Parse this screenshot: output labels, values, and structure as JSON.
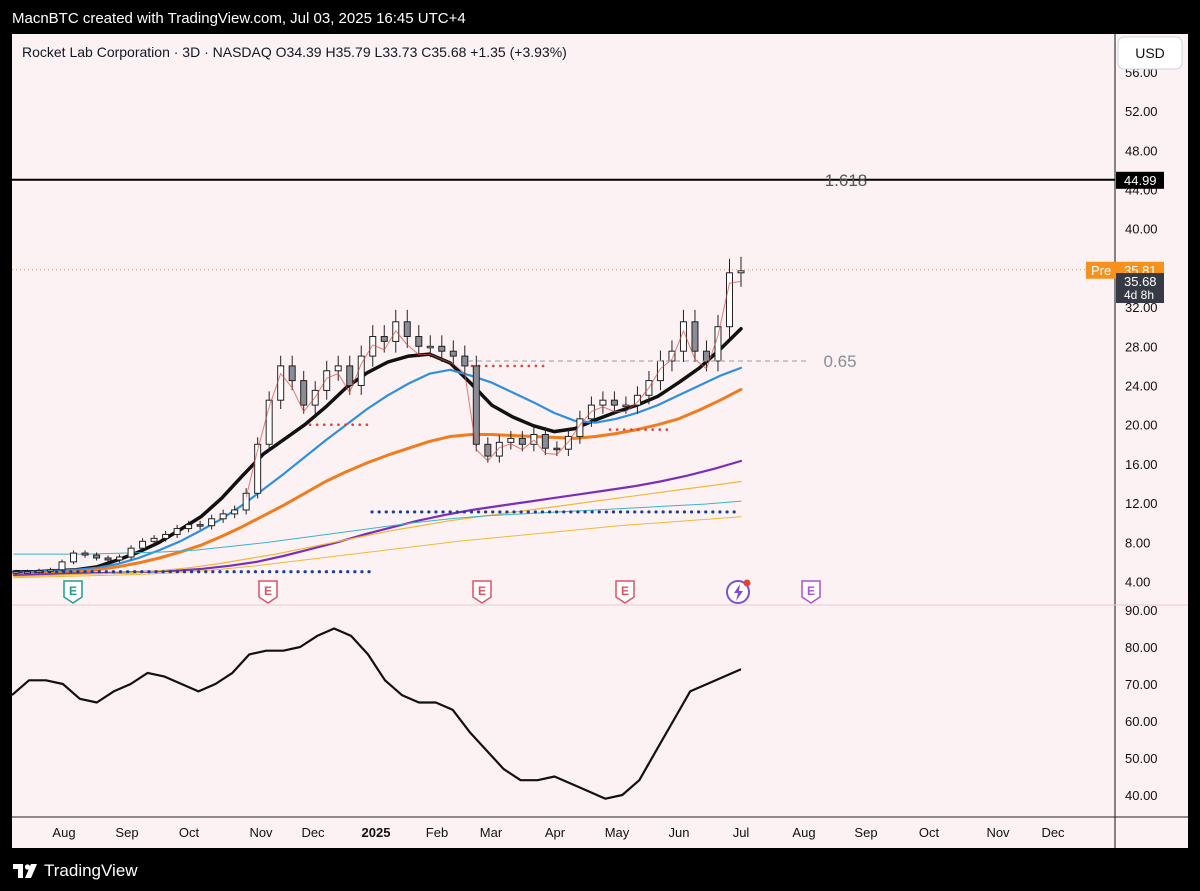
{
  "header": {
    "credit": "MacnBTC created with TradingView.com, Jul 03, 2025 16:45 UTC+4"
  },
  "footer": {
    "brand": "TradingView"
  },
  "legend": {
    "symbol": "Rocket Lab Corporation · 3D · NASDAQ",
    "open": "O34.39",
    "high": "H35.79",
    "low": "L33.73",
    "close": "C35.68",
    "change": "+1.35 (+3.93%)"
  },
  "currency_button": "USD",
  "colors": {
    "background": "#fcf1f3",
    "price_ma_black": "#111111",
    "ma_blue": "#2f8fe0",
    "ma_orange": "#f07c1e",
    "ma_purple": "#7b2fb8",
    "ma_gold": "#f1b938",
    "ma_teal": "#3ab5c9",
    "dots_blue": "#1c3f9a",
    "dots_red": "#e0453c",
    "pre_badge": "#f5921e",
    "price_badge": "#363a45",
    "earnings_past": "#e05262",
    "earnings_first": "#1d9e8f",
    "earnings_future": "#b04fd6"
  },
  "chart_data": [
    {
      "type": "candlestick",
      "title": "Rocket Lab Corporation · 3D · NASDAQ",
      "x_ticks": [
        "Aug",
        "Sep",
        "Oct",
        "Nov",
        "Dec",
        "2025",
        "Feb",
        "Mar",
        "Apr",
        "May",
        "Jun",
        "Jul",
        "Aug",
        "Sep",
        "Oct",
        "Nov",
        "Dec"
      ],
      "y_ticks": [
        "4.00",
        "8.00",
        "12.00",
        "16.00",
        "20.00",
        "24.00",
        "28.00",
        "32.00",
        "36.00",
        "40.00",
        "44.00",
        "48.00",
        "52.00",
        "56.00"
      ],
      "ylim": [
        2.5,
        57
      ],
      "price_close_path": [
        5.0,
        5.0,
        5.1,
        5.2,
        6.0,
        6.9,
        6.7,
        6.4,
        6.2,
        6.5,
        7.4,
        8.1,
        8.4,
        8.8,
        9.4,
        9.8,
        9.7,
        10.4,
        10.9,
        11.3,
        13.0,
        18.0,
        22.5,
        26.0,
        24.5,
        22.0,
        23.5,
        25.5,
        26.0,
        24.0,
        27.0,
        29.0,
        28.5,
        30.5,
        29.0,
        28.0,
        28.0,
        27.5,
        27.0,
        26.0,
        18.0,
        16.8,
        18.2,
        18.6,
        18.0,
        19.0,
        17.6,
        17.5,
        18.8,
        20.6,
        22.0,
        22.5,
        22.0,
        22.0,
        23.0,
        24.5,
        26.5,
        27.5,
        30.5,
        27.5,
        26.5,
        30.0,
        35.5,
        35.7
      ],
      "fib_levels": [
        {
          "label": "1.618",
          "value": 44.99
        },
        {
          "label": "0.65",
          "value": 26.5
        }
      ],
      "price_badges": [
        {
          "label": "44.99",
          "value": 44.99
        },
        {
          "label": "Pre",
          "value": 35.81,
          "text": "35.81"
        },
        {
          "label": "35.68",
          "value": 35.68,
          "countdown": "4d 8h"
        }
      ],
      "moving_averages": [
        {
          "color": "#111111",
          "points": [
            5.0,
            5.0,
            5.1,
            5.2,
            5.5,
            6.2,
            7.0,
            8.0,
            9.3,
            10.6,
            12.5,
            14.8,
            17.0,
            18.5,
            20.0,
            21.8,
            23.8,
            25.3,
            26.4,
            27.0,
            27.2,
            26.3,
            24.2,
            22.0,
            20.8,
            19.9,
            19.3,
            19.6,
            20.5,
            21.3,
            22.0,
            22.9,
            24.3,
            25.8,
            27.7,
            29.8
          ]
        },
        {
          "color": "#2f8fe0",
          "points": [
            4.9,
            5.0,
            5.1,
            5.2,
            5.4,
            5.8,
            6.4,
            7.2,
            8.1,
            9.2,
            10.4,
            11.8,
            13.4,
            15.0,
            16.7,
            18.4,
            20.0,
            21.6,
            23.0,
            24.2,
            25.2,
            25.6,
            25.0,
            24.3,
            23.3,
            22.3,
            21.2,
            20.4,
            20.2,
            20.6,
            21.2,
            22.0,
            23.0,
            24.0,
            25.0,
            25.8
          ]
        },
        {
          "color": "#f07c1e",
          "points": [
            4.7,
            4.8,
            4.9,
            5.0,
            5.2,
            5.5,
            5.9,
            6.4,
            7.0,
            7.7,
            8.6,
            9.6,
            10.7,
            11.8,
            13.0,
            14.2,
            15.2,
            16.1,
            16.9,
            17.6,
            18.3,
            18.8,
            19.0,
            19.0,
            18.9,
            18.8,
            18.7,
            18.6,
            18.8,
            19.1,
            19.5,
            20.0,
            20.6,
            21.5,
            22.5,
            23.6
          ]
        },
        {
          "color": "#7b2fb8",
          "points": [
            4.6,
            4.7,
            4.8,
            4.85,
            4.9,
            5.0,
            5.1,
            5.3,
            5.6,
            6.0,
            6.6,
            7.3,
            8.0,
            8.8,
            9.5,
            10.2,
            10.8,
            11.3,
            11.7,
            12.1,
            12.5,
            12.9,
            13.3,
            13.7,
            14.2,
            14.8,
            15.5,
            16.3
          ]
        },
        {
          "color": "#f1b938",
          "points": [
            4.5,
            4.6,
            4.7,
            4.8,
            4.9,
            5.1,
            5.4,
            5.8,
            6.3,
            6.8,
            7.4,
            8.0,
            8.6,
            9.2,
            9.7,
            10.2,
            10.6,
            11.0,
            11.4,
            11.8,
            12.2,
            12.6,
            13.0,
            13.4,
            13.8,
            14.2
          ]
        },
        {
          "color": "#3ab5c9",
          "points": [
            6.8,
            6.8,
            6.8,
            6.9,
            7.0,
            7.2,
            7.6,
            8.0,
            8.5,
            9.0,
            9.5,
            10.0,
            10.4,
            10.7,
            10.9,
            11.1,
            11.3,
            11.5,
            11.7,
            11.9,
            12.2
          ]
        },
        {
          "color": "#f1b938",
          "points": [
            4.4,
            4.5,
            4.6,
            4.7,
            4.9,
            5.2,
            5.6,
            6.1,
            6.6,
            7.1,
            7.6,
            8.1,
            8.5,
            8.9,
            9.3,
            9.7,
            10.0,
            10.3,
            10.6
          ]
        }
      ],
      "dotted_levels": [
        {
          "color": "#1c3f9a",
          "from_label": "Aug",
          "to_label": "Jan",
          "value": 5.0
        },
        {
          "color": "#1c3f9a",
          "from_label": "Jan",
          "to_label": "Jul",
          "value": 11.1
        }
      ],
      "earnings_markers": [
        {
          "label": "E",
          "month": "Aug",
          "kind": "first"
        },
        {
          "label": "E",
          "month": "Nov",
          "kind": "past"
        },
        {
          "label": "E",
          "month": "Feb",
          "kind": "past"
        },
        {
          "label": "E",
          "month": "May",
          "kind": "past"
        },
        {
          "label": "E",
          "month": "Aug",
          "kind": "future"
        }
      ]
    },
    {
      "type": "line",
      "title": "",
      "y_ticks": [
        "40.00",
        "50.00",
        "60.00",
        "70.00",
        "80.00",
        "90.00"
      ],
      "ylim": [
        36,
        91
      ],
      "values": [
        67,
        71,
        71,
        70,
        66,
        65,
        68,
        70,
        73,
        72,
        70,
        68,
        70,
        73,
        78,
        79,
        79,
        80,
        83,
        85,
        83,
        78,
        71,
        67,
        65,
        65,
        63,
        57,
        52,
        47,
        44,
        44,
        45,
        43,
        41,
        39,
        40,
        44,
        52,
        60,
        68,
        70,
        72,
        74
      ]
    }
  ]
}
